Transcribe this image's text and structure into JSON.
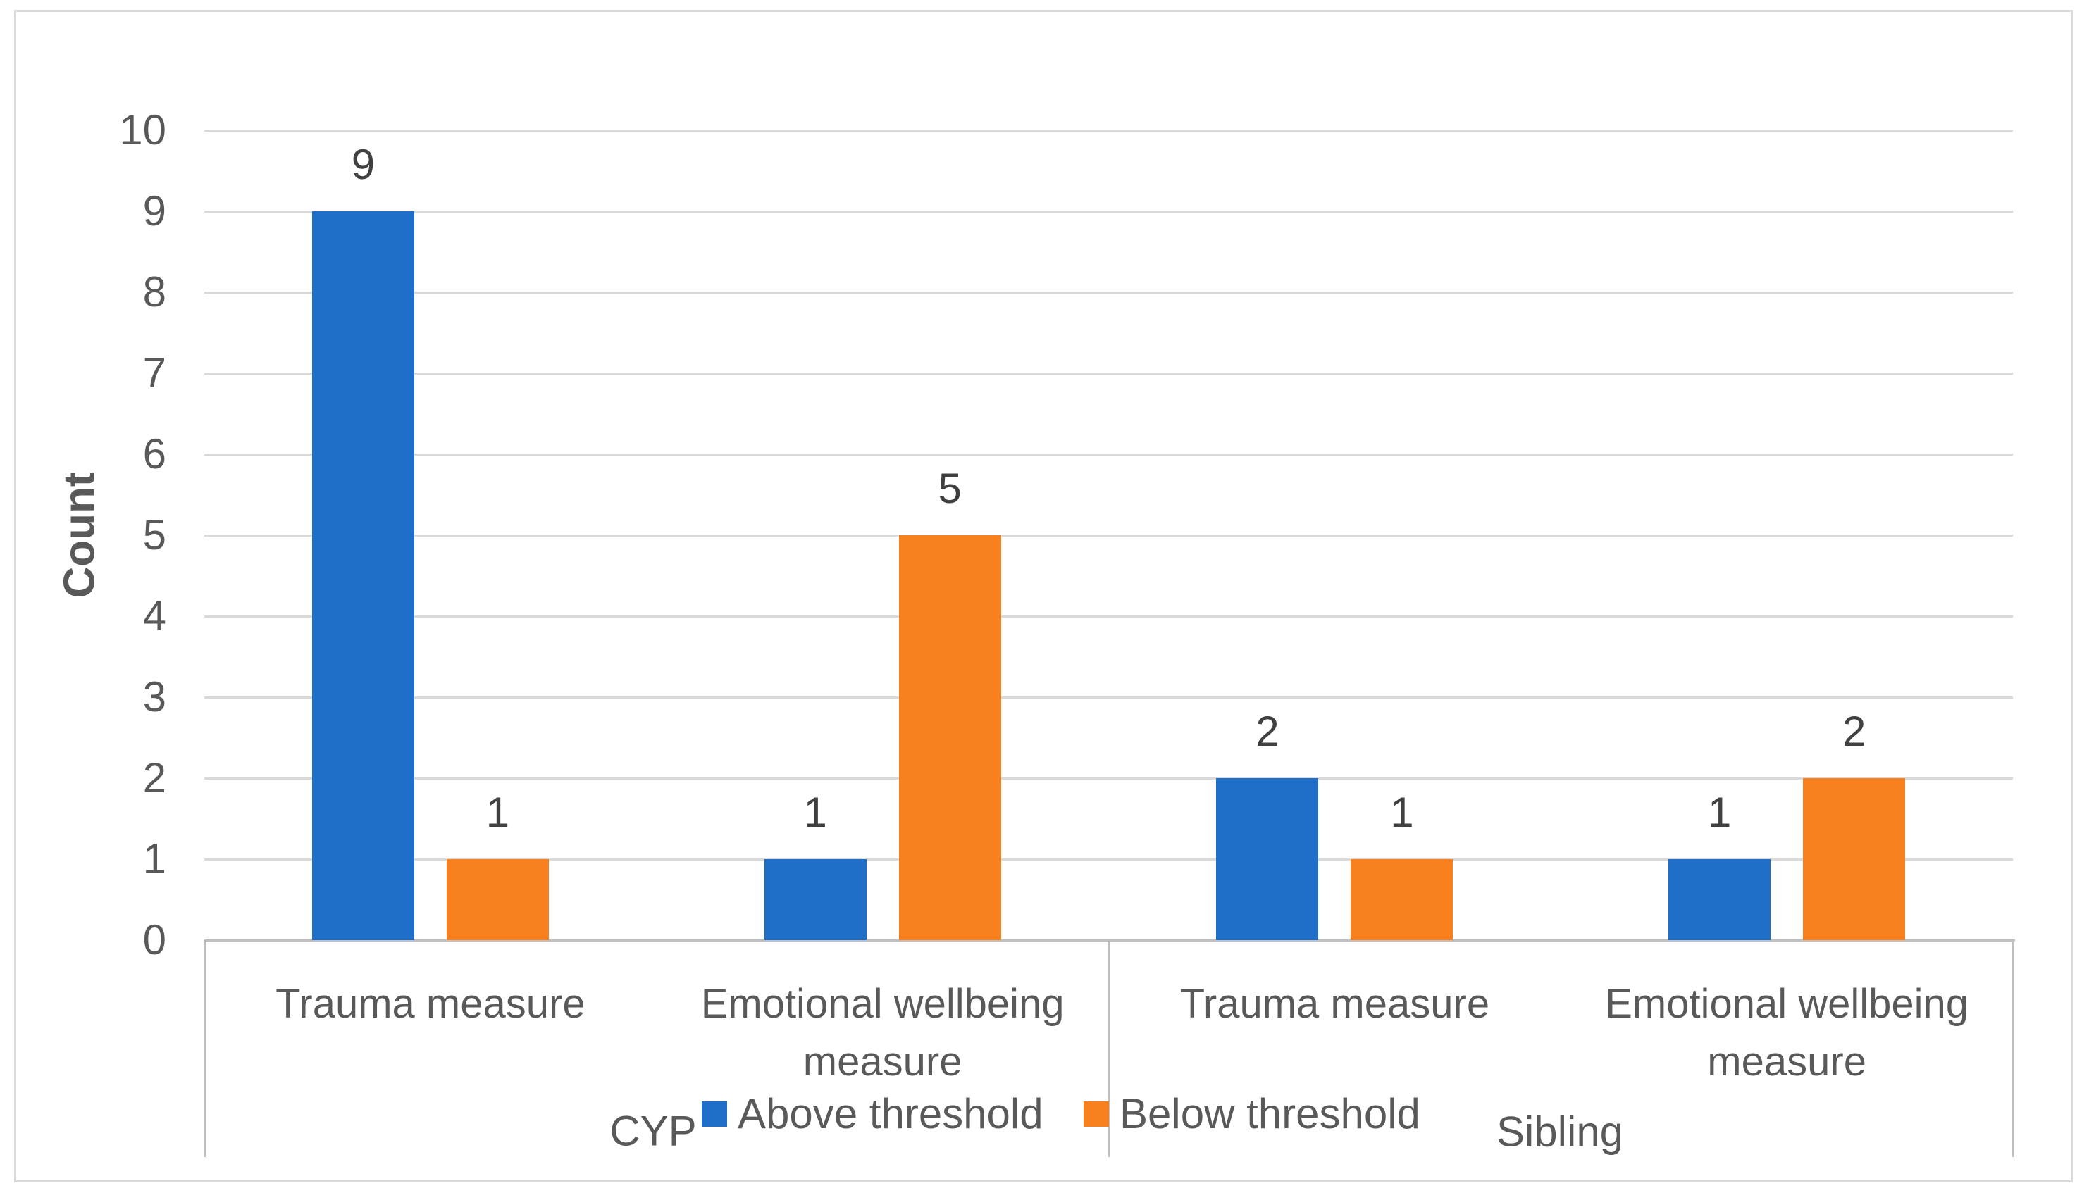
{
  "chart_data": {
    "type": "bar",
    "title": "",
    "xlabel": "",
    "ylabel": "Count",
    "ylim": [
      0,
      10
    ],
    "yticks": [
      "0",
      "1",
      "2",
      "3",
      "4",
      "5",
      "6",
      "7",
      "8",
      "9",
      "10"
    ],
    "grid": true,
    "legend_position": "bottom",
    "group_labels": [
      "CYP",
      "Sibling"
    ],
    "categories": [
      "Trauma measure",
      "Emotional wellbeing measure",
      "Trauma measure",
      "Emotional wellbeing measure"
    ],
    "category_group_index": [
      0,
      0,
      1,
      1
    ],
    "series": [
      {
        "name": "Above threshold",
        "color": "#1F6FC8",
        "values": [
          9,
          1,
          2,
          1
        ]
      },
      {
        "name": "Below threshold",
        "color": "#F9801E",
        "values": [
          1,
          5,
          1,
          2
        ]
      }
    ],
    "data_labels_shown": true,
    "colors": {
      "gridline": "#D9D9D9",
      "axis_line": "#BFBFBF",
      "axis_text": "#595959",
      "data_label_text": "#404040",
      "figure_border": "#D9D9D9"
    }
  }
}
